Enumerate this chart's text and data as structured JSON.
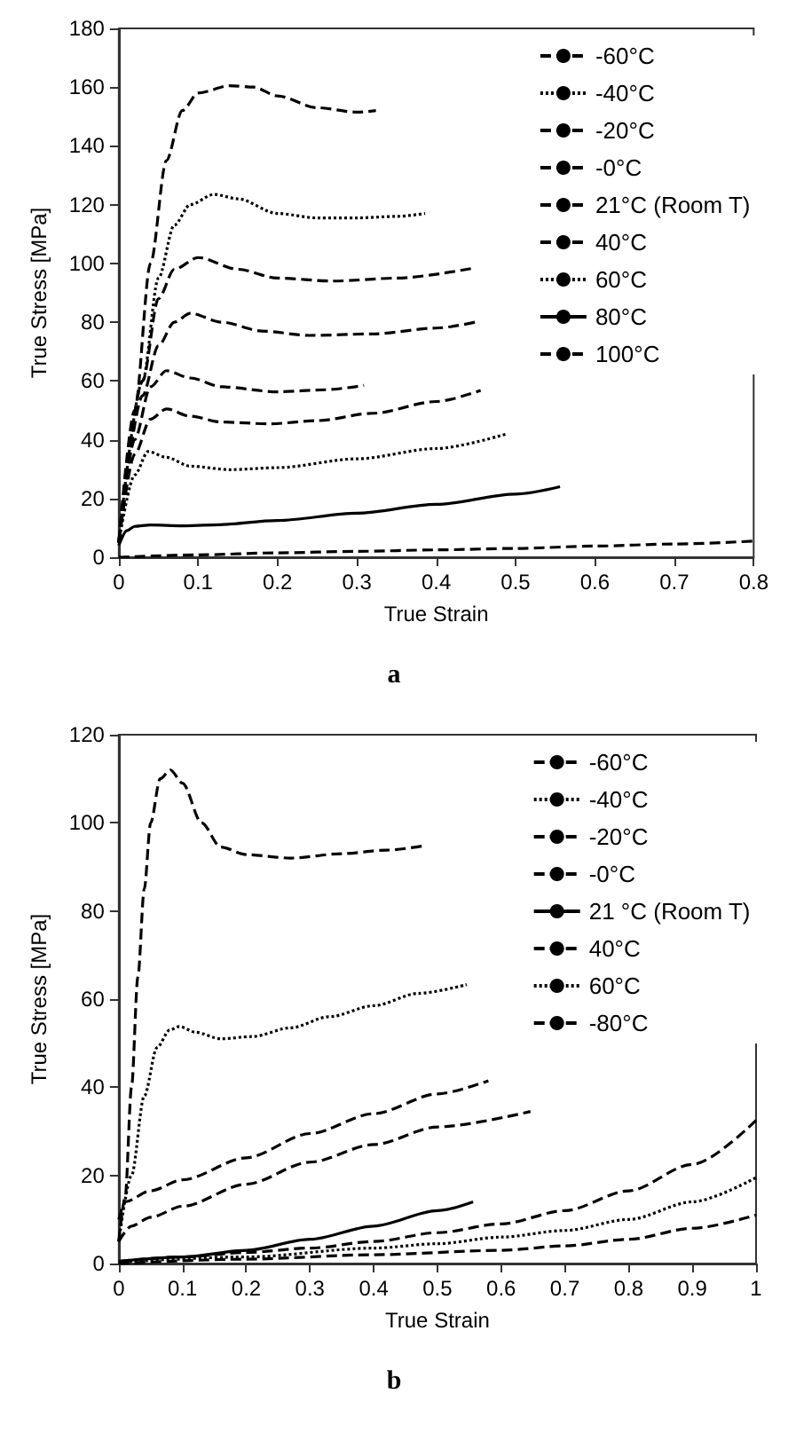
{
  "chart_data": [
    {
      "type": "line",
      "xlabel": "True Strain",
      "ylabel": "True Stress [MPa]",
      "annotations": [
        "a"
      ],
      "xlim": [
        0,
        0.8
      ],
      "xticks": [
        0,
        0.1,
        0.2,
        0.3,
        0.4,
        0.5,
        0.6,
        0.7,
        0.8
      ],
      "ylim": [
        0,
        180
      ],
      "yticks": [
        0,
        20,
        40,
        60,
        80,
        100,
        120,
        140,
        160,
        180
      ],
      "grid": false,
      "legend": "top right",
      "marker": "none",
      "series": [
        {
          "name": "-60°C",
          "color": "#000000",
          "line_style": "dashed",
          "x": [
            0,
            0.02,
            0.04,
            0.06,
            0.08,
            0.1,
            0.14,
            0.17,
            0.2,
            0.25,
            0.3,
            0.324
          ],
          "values": [
            5,
            50,
            100,
            135,
            152,
            158,
            160.5,
            160,
            157,
            153,
            151.5,
            152
          ]
        },
        {
          "name": "-40°C",
          "color": "#000000",
          "line_style": "dotted",
          "x": [
            0,
            0.03,
            0.05,
            0.07,
            0.09,
            0.12,
            0.15,
            0.2,
            0.25,
            0.3,
            0.35,
            0.386
          ],
          "values": [
            5,
            60,
            95,
            113,
            120,
            123.5,
            122,
            117,
            115.5,
            115.5,
            116,
            117
          ]
        },
        {
          "name": "-20°C",
          "color": "#000000",
          "line_style": "dashed",
          "x": [
            0,
            0.03,
            0.05,
            0.07,
            0.1,
            0.15,
            0.2,
            0.27,
            0.35,
            0.449
          ],
          "values": [
            5,
            60,
            88,
            98,
            102,
            98,
            95,
            94,
            95,
            98.5
          ]
        },
        {
          "name": "-0°C",
          "color": "#000000",
          "line_style": "dashed",
          "x": [
            0,
            0.03,
            0.05,
            0.07,
            0.09,
            0.13,
            0.18,
            0.24,
            0.32,
            0.4,
            0.449
          ],
          "values": [
            5,
            55,
            72,
            80,
            83,
            80,
            77,
            75.5,
            76,
            78,
            80
          ]
        },
        {
          "name": "21°C (Room T)",
          "color": "#000000",
          "line_style": "dashed",
          "x": [
            0,
            0.02,
            0.04,
            0.06,
            0.09,
            0.13,
            0.2,
            0.26,
            0.309
          ],
          "values": [
            5,
            40,
            58,
            63.5,
            61,
            58,
            56.3,
            57,
            58.5
          ]
        },
        {
          "name": "40°C",
          "color": "#000000",
          "line_style": "dashed",
          "x": [
            0,
            0.02,
            0.04,
            0.06,
            0.09,
            0.13,
            0.19,
            0.25,
            0.32,
            0.4,
            0.456
          ],
          "values": [
            5,
            35,
            47,
            50.5,
            48,
            46,
            45.4,
            46.5,
            49,
            53,
            56.8
          ]
        },
        {
          "name": "60°C",
          "color": "#000000",
          "line_style": "dotted",
          "x": [
            0,
            0.02,
            0.037,
            0.06,
            0.09,
            0.14,
            0.2,
            0.3,
            0.4,
            0.489
          ],
          "values": [
            5,
            28,
            36,
            34,
            31,
            29.8,
            30.5,
            33.5,
            37,
            42
          ]
        },
        {
          "name": "80°C",
          "color": "#000000",
          "line_style": "solid",
          "x": [
            0,
            0.01,
            0.02,
            0.04,
            0.08,
            0.12,
            0.2,
            0.3,
            0.4,
            0.5,
            0.556
          ],
          "values": [
            4,
            9,
            10.5,
            11,
            10.7,
            11,
            12.5,
            15,
            18,
            21.5,
            24
          ]
        },
        {
          "name": "100°C",
          "color": "#000000",
          "line_style": "dashed",
          "x": [
            0,
            0.1,
            0.2,
            0.3,
            0.4,
            0.5,
            0.6,
            0.7,
            0.8
          ],
          "values": [
            0,
            0.8,
            1.5,
            2,
            2.5,
            3,
            3.8,
            4.5,
            5.5
          ]
        }
      ]
    },
    {
      "type": "line",
      "xlabel": "True Strain",
      "ylabel": "True Stress [MPa]",
      "annotations": [
        "b"
      ],
      "xlim": [
        0,
        1
      ],
      "xticks": [
        0,
        0.1,
        0.2,
        0.3,
        0.4,
        0.5,
        0.6,
        0.7,
        0.8,
        0.9,
        1
      ],
      "ylim": [
        0,
        120
      ],
      "yticks": [
        0,
        20,
        40,
        60,
        80,
        100,
        120
      ],
      "grid": false,
      "legend": "top right",
      "marker": "none",
      "series": [
        {
          "name": "-60°C",
          "color": "#000000",
          "line_style": "dashed",
          "x": [
            0,
            0.01,
            0.02,
            0.03,
            0.04,
            0.05,
            0.065,
            0.081,
            0.1,
            0.13,
            0.16,
            0.2,
            0.27,
            0.35,
            0.42,
            0.479
          ],
          "values": [
            5,
            15,
            40,
            65,
            85,
            100,
            110,
            112,
            109,
            100,
            94.5,
            92.8,
            92,
            93,
            93.8,
            94.8
          ]
        },
        {
          "name": "-40°C",
          "color": "#000000",
          "line_style": "dotted",
          "x": [
            0,
            0.02,
            0.04,
            0.06,
            0.08,
            0.095,
            0.12,
            0.16,
            0.21,
            0.27,
            0.33,
            0.4,
            0.47,
            0.546
          ],
          "values": [
            5,
            20,
            38,
            49,
            53,
            53.8,
            52.5,
            51,
            51.5,
            53.5,
            56,
            58.5,
            61.3,
            63.3
          ]
        },
        {
          "name": "-20°C",
          "color": "#000000",
          "line_style": "dashed",
          "x": [
            0,
            0.01,
            0.05,
            0.1,
            0.2,
            0.3,
            0.4,
            0.5,
            0.58
          ],
          "values": [
            10,
            14,
            16.5,
            19,
            24,
            29.5,
            34,
            38.5,
            41.5
          ]
        },
        {
          "name": "-0°C",
          "color": "#000000",
          "line_style": "dashed",
          "x": [
            0,
            0.02,
            0.05,
            0.1,
            0.2,
            0.3,
            0.4,
            0.5,
            0.646
          ],
          "values": [
            5,
            8.5,
            10.5,
            13,
            18,
            23,
            27,
            31,
            34.5
          ]
        },
        {
          "name": "21 °C (Room T)",
          "color": "#000000",
          "line_style": "solid",
          "x": [
            0,
            0.1,
            0.2,
            0.3,
            0.4,
            0.5,
            0.556
          ],
          "values": [
            0.5,
            1.5,
            3,
            5.5,
            8.5,
            12,
            14
          ]
        },
        {
          "name": "40°C",
          "color": "#000000",
          "line_style": "dashed",
          "x": [
            0,
            0.1,
            0.2,
            0.3,
            0.4,
            0.5,
            0.6,
            0.7,
            0.8,
            0.9,
            1
          ],
          "values": [
            0.5,
            1.5,
            2.5,
            3.5,
            5,
            7,
            9,
            12,
            16.5,
            22.5,
            32.5
          ]
        },
        {
          "name": "60°C",
          "color": "#000000",
          "line_style": "dotted",
          "x": [
            0,
            0.2,
            0.4,
            0.5,
            0.6,
            0.7,
            0.8,
            0.9,
            1
          ],
          "values": [
            0.3,
            1.5,
            3.5,
            4.5,
            6,
            7.5,
            10,
            14,
            19.5
          ]
        },
        {
          "name": "-80°C",
          "color": "#000000",
          "line_style": "dashed",
          "x": [
            0,
            0.2,
            0.4,
            0.6,
            0.7,
            0.8,
            0.9,
            1
          ],
          "values": [
            0,
            1,
            2,
            3,
            4,
            5.5,
            8,
            11
          ]
        }
      ]
    }
  ]
}
